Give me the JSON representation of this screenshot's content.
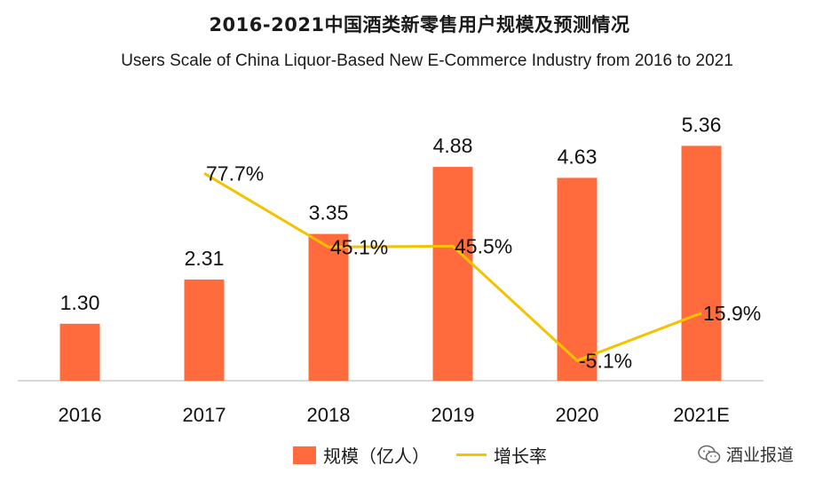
{
  "title": "2016-2021中国酒类新零售用户规模及预测情况",
  "subtitle": "Users Scale of China  Liquor-Based New E-Commerce Industry from 2016 to 2021",
  "watermark": "酒业报道",
  "colors": {
    "bar": "#ff6b3d",
    "line": "#f5c200",
    "axis": "#cccccc"
  },
  "chart_data": {
    "type": "bar",
    "categories": [
      "2016",
      "2017",
      "2018",
      "2019",
      "2020",
      "2021E"
    ],
    "series": [
      {
        "name": "规模（亿人）",
        "type": "bar",
        "values": [
          1.3,
          2.31,
          3.35,
          4.88,
          4.63,
          5.36
        ],
        "labels": [
          "1.30",
          "2.31",
          "3.35",
          "4.88",
          "4.63",
          "5.36"
        ]
      },
      {
        "name": "增长率",
        "type": "line",
        "values": [
          null,
          77.7,
          45.1,
          45.5,
          -5.1,
          15.9
        ],
        "labels": [
          "",
          "77.7%",
          "45.1%",
          "45.5%",
          "-5.1%",
          "15.9%"
        ]
      }
    ],
    "bar_ylim": [
      0,
      6.4
    ],
    "line_ylim": [
      -14,
      110
    ],
    "legend": "bottom",
    "grid": false
  }
}
